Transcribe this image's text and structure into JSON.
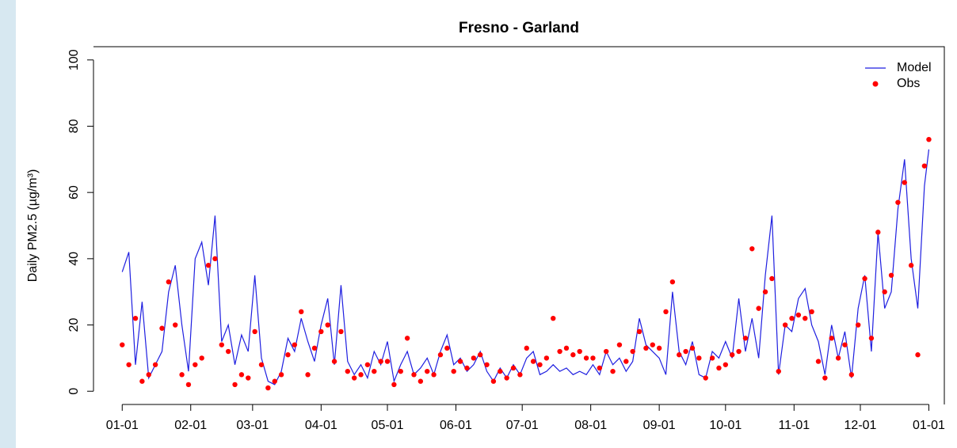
{
  "chart_data": {
    "type": "line",
    "title": "Fresno - Garland",
    "y_label": "Daily PM2.5 (µg/m³)",
    "x": [
      0,
      3,
      6,
      9,
      12,
      15,
      18,
      21,
      24,
      27,
      30,
      33,
      36,
      39,
      42,
      45,
      48,
      51,
      54,
      57,
      60,
      63,
      66,
      69,
      72,
      75,
      78,
      81,
      84,
      87,
      90,
      93,
      96,
      99,
      102,
      105,
      108,
      111,
      114,
      117,
      120,
      123,
      126,
      129,
      132,
      135,
      138,
      141,
      144,
      147,
      150,
      153,
      156,
      159,
      162,
      165,
      168,
      171,
      174,
      177,
      180,
      183,
      186,
      189,
      192,
      195,
      198,
      201,
      204,
      207,
      210,
      213,
      216,
      219,
      222,
      225,
      228,
      231,
      234,
      237,
      240,
      243,
      246,
      249,
      252,
      255,
      258,
      261,
      264,
      267,
      270,
      273,
      276,
      279,
      282,
      285,
      288,
      291,
      294,
      297,
      300,
      303,
      306,
      309,
      312,
      315,
      318,
      321,
      324,
      327,
      330,
      333,
      336,
      339,
      342,
      345,
      348,
      351,
      354,
      357,
      360,
      363,
      365
    ],
    "series": [
      {
        "name": "Model",
        "style": "line",
        "color": "#1f1fe0",
        "values": [
          36,
          42,
          8,
          27,
          4,
          8,
          12,
          30,
          38,
          20,
          6,
          40,
          45,
          32,
          53,
          15,
          20,
          8,
          17,
          12,
          35,
          10,
          3,
          2,
          6,
          16,
          12,
          22,
          15,
          9,
          20,
          28,
          8,
          32,
          9,
          5,
          8,
          4,
          12,
          8,
          15,
          3,
          8,
          12,
          5,
          7,
          10,
          5,
          12,
          17,
          8,
          10,
          6,
          8,
          12,
          6,
          3,
          7,
          4,
          8,
          5,
          10,
          12,
          5,
          6,
          8,
          6,
          7,
          5,
          6,
          5,
          8,
          5,
          12,
          8,
          10,
          6,
          9,
          22,
          14,
          12,
          10,
          5,
          30,
          12,
          8,
          15,
          5,
          4,
          12,
          10,
          15,
          10,
          28,
          12,
          22,
          10,
          35,
          53,
          5,
          20,
          18,
          28,
          31,
          20,
          15,
          5,
          20,
          10,
          18,
          4,
          25,
          35,
          12,
          48,
          25,
          30,
          55,
          70,
          40,
          25,
          62,
          73
        ]
      },
      {
        "name": "Obs",
        "style": "points",
        "color": "#ff0000",
        "values": [
          14,
          8,
          22,
          3,
          5,
          8,
          19,
          33,
          20,
          5,
          2,
          8,
          10,
          38,
          40,
          14,
          12,
          2,
          5,
          4,
          18,
          8,
          1,
          3,
          5,
          11,
          14,
          24,
          5,
          13,
          18,
          20,
          9,
          18,
          6,
          4,
          5,
          8,
          6,
          9,
          9,
          2,
          6,
          16,
          5,
          3,
          6,
          5,
          11,
          13,
          6,
          9,
          7,
          10,
          11,
          8,
          3,
          6,
          4,
          7,
          5,
          13,
          9,
          8,
          10,
          22,
          12,
          13,
          11,
          12,
          10,
          10,
          7,
          12,
          6,
          14,
          9,
          12,
          18,
          13,
          14,
          13,
          24,
          33,
          11,
          12,
          13,
          10,
          4,
          10,
          7,
          8,
          11,
          12,
          16,
          43,
          25,
          30,
          34,
          6,
          20,
          22,
          23,
          22,
          24,
          9,
          4,
          16,
          10,
          14,
          5,
          20,
          34,
          16,
          48,
          30,
          35,
          57,
          63,
          38,
          11,
          68,
          76
        ]
      }
    ],
    "xlim": [
      -13,
      372
    ],
    "ylim": [
      -4,
      104
    ],
    "xticks": [
      {
        "value": 0,
        "label": "01-01"
      },
      {
        "value": 31,
        "label": "02-01"
      },
      {
        "value": 59,
        "label": "03-01"
      },
      {
        "value": 90,
        "label": "04-01"
      },
      {
        "value": 120,
        "label": "05-01"
      },
      {
        "value": 151,
        "label": "06-01"
      },
      {
        "value": 181,
        "label": "07-01"
      },
      {
        "value": 212,
        "label": "08-01"
      },
      {
        "value": 243,
        "label": "09-01"
      },
      {
        "value": 273,
        "label": "10-01"
      },
      {
        "value": 304,
        "label": "11-01"
      },
      {
        "value": 334,
        "label": "12-01"
      },
      {
        "value": 365,
        "label": "01-01"
      }
    ],
    "yticks": [
      0,
      20,
      40,
      60,
      80,
      100
    ],
    "legend": "topright"
  }
}
